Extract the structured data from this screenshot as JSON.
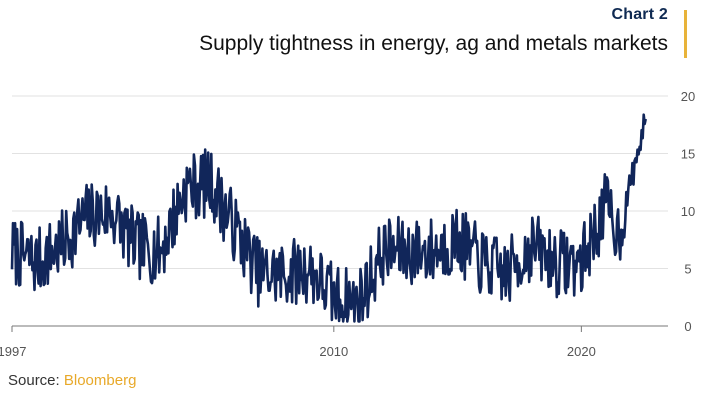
{
  "header": {
    "kicker": "Chart 2",
    "title": "Supply tightness in energy, ag and metals markets"
  },
  "source": {
    "label": "Source:",
    "name": "Bloomberg"
  },
  "colors": {
    "line": "#11265a",
    "accent": "#e8b33a",
    "grid": "#e2e2e2",
    "axis": "#777777"
  },
  "chart_data": {
    "type": "line",
    "title": "Supply tightness in energy, ag and metals markets",
    "xlabel": "",
    "ylabel": "",
    "xlim": [
      1997,
      2023.5
    ],
    "ylim": [
      0,
      20
    ],
    "y_axis_side": "right",
    "xticks": [
      1997,
      2010,
      2020
    ],
    "xtick_labels": [
      "1997",
      "2010",
      "2020"
    ],
    "yticks": [
      0,
      5,
      10,
      15,
      20
    ],
    "ytick_labels": [
      "0",
      "5",
      "10",
      "15",
      "20"
    ],
    "grid": true,
    "series": [
      {
        "name": "Supply tightness",
        "x": [
          1997.0,
          1998.0,
          1999.0,
          2000.0,
          2001.0,
          2002.0,
          2003.0,
          2004.0,
          2005.0,
          2006.0,
          2007.0,
          2008.0,
          2009.0,
          2010.0,
          2011.0,
          2012.0,
          2013.0,
          2014.0,
          2015.0,
          2016.0,
          2017.0,
          2018.0,
          2019.0,
          2020.0,
          2021.0,
          2021.5,
          2022.0,
          2022.6
        ],
        "values": [
          6.5,
          5.5,
          7.0,
          9.5,
          10.0,
          7.0,
          6.5,
          12.0,
          12.5,
          8.5,
          4.5,
          4.5,
          5.0,
          2.5,
          2.0,
          6.5,
          6.5,
          6.5,
          7.5,
          5.5,
          4.5,
          7.0,
          5.5,
          5.5,
          10.5,
          8.0,
          12.5,
          18.0
        ]
      }
    ]
  }
}
